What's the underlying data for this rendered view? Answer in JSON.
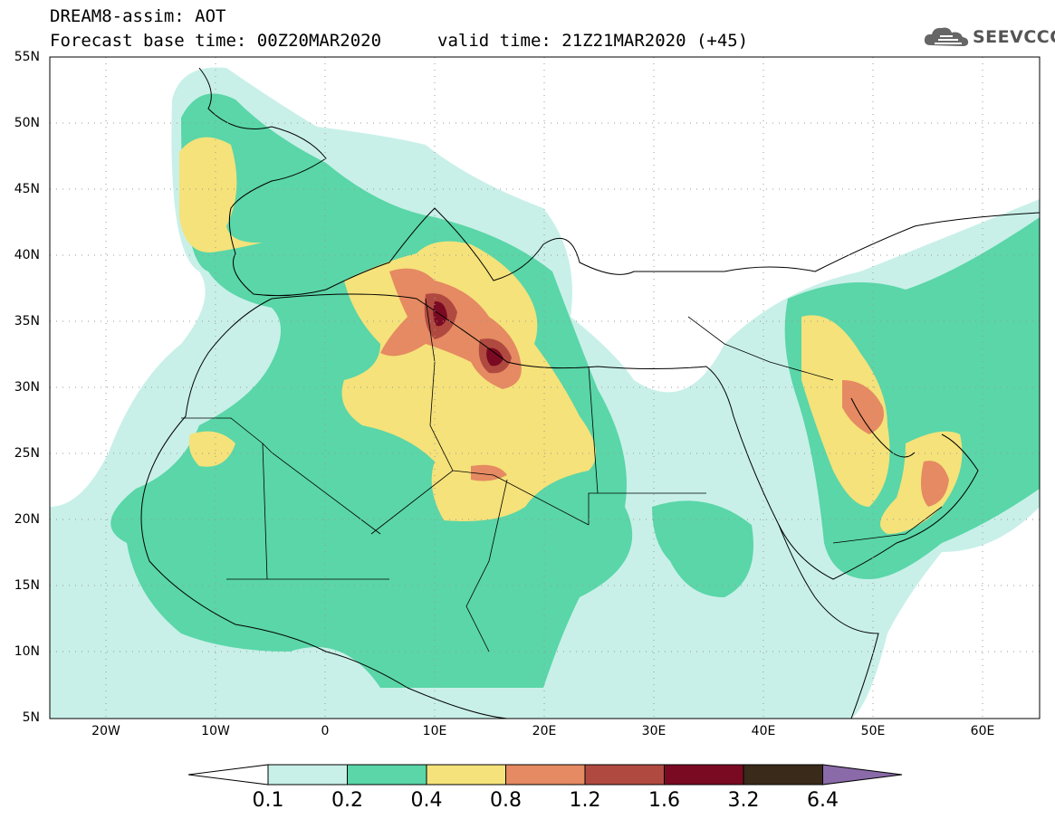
{
  "header": {
    "line1": "DREAM8-assim: AOT",
    "base_time": "Forecast base time: 00Z20MAR2020",
    "valid_time": "valid time: 21Z21MAR2020 (+45)"
  },
  "logo": {
    "icon": "cloud-icon",
    "text": "SEEVCCC"
  },
  "axes": {
    "lat_labels": [
      "55N",
      "50N",
      "45N",
      "40N",
      "35N",
      "30N",
      "25N",
      "20N",
      "15N",
      "10N",
      "5N"
    ],
    "lon_labels": [
      "20W",
      "10W",
      "0",
      "10E",
      "20E",
      "30E",
      "40E",
      "50E",
      "60E"
    ]
  },
  "colorbar": {
    "levels": [
      "0.1",
      "0.2",
      "0.4",
      "0.8",
      "1.2",
      "1.6",
      "3.2",
      "6.4"
    ],
    "colors": [
      "#ffffff",
      "#c8f0e8",
      "#5ad6a8",
      "#f5e27a",
      "#e58a62",
      "#b04a40",
      "#7a0a22",
      "#3a2a1a",
      "#8a6aa8"
    ]
  }
}
